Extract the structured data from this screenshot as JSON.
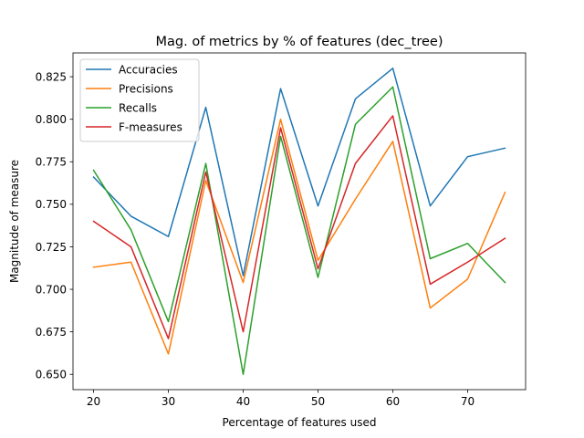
{
  "chart_data": {
    "type": "line",
    "title": "Mag. of metrics by % of features (dec_tree)",
    "xlabel": "Percentage of features used",
    "ylabel": "Magnitude of measure",
    "x": [
      20,
      25,
      30,
      35,
      40,
      45,
      50,
      55,
      60,
      65,
      70,
      75
    ],
    "xticks": [
      20,
      30,
      40,
      50,
      60,
      70
    ],
    "yticks": [
      0.65,
      0.675,
      0.7,
      0.725,
      0.75,
      0.775,
      0.8,
      0.825
    ],
    "xlim": [
      17.25,
      77.75
    ],
    "ylim": [
      0.641,
      0.839
    ],
    "grid": false,
    "legend_position": "upper-left",
    "series": [
      {
        "name": "Accuracies",
        "color": "#1f77b4",
        "values": [
          0.766,
          0.743,
          0.731,
          0.807,
          0.708,
          0.818,
          0.749,
          0.812,
          0.83,
          0.749,
          0.778,
          0.783
        ]
      },
      {
        "name": "Precisions",
        "color": "#ff7f0e",
        "values": [
          0.713,
          0.716,
          0.662,
          0.764,
          0.704,
          0.8,
          0.717,
          0.753,
          0.787,
          0.689,
          0.706,
          0.757
        ]
      },
      {
        "name": "Recalls",
        "color": "#2ca02c",
        "values": [
          0.77,
          0.735,
          0.681,
          0.774,
          0.65,
          0.79,
          0.707,
          0.797,
          0.819,
          0.718,
          0.727,
          0.704
        ]
      },
      {
        "name": "F-measures",
        "color": "#d62728",
        "values": [
          0.74,
          0.725,
          0.671,
          0.769,
          0.675,
          0.795,
          0.712,
          0.774,
          0.802,
          0.703,
          0.716,
          0.73
        ]
      }
    ]
  }
}
